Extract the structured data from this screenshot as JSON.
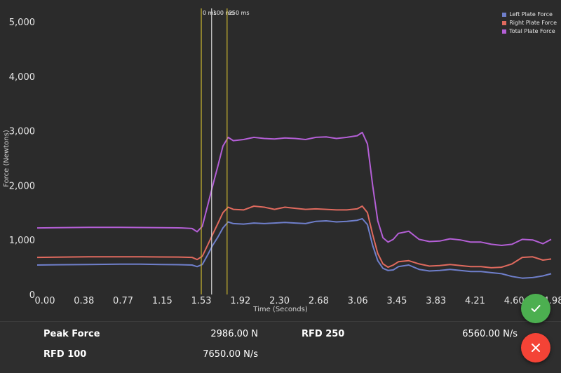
{
  "chart_data": {
    "type": "line",
    "xlabel": "Time (Seconds)",
    "ylabel": "Force (Newtons)",
    "x_ticks": [
      "0.00",
      "0.38",
      "0.77",
      "1.15",
      "1.53",
      "1.92",
      "2.30",
      "2.68",
      "3.06",
      "3.45",
      "3.83",
      "4.21",
      "4.60",
      "4.98"
    ],
    "y_ticks": [
      "0",
      "1,000",
      "2,000",
      "3,000",
      "4,000",
      "5,000"
    ],
    "xlim": [
      0,
      4.98
    ],
    "ylim": [
      0,
      5000
    ],
    "legend_position": "top-right",
    "markers": [
      {
        "label": "0 ms",
        "x": 1.59,
        "color": "#c8b431"
      },
      {
        "label": "100 ms",
        "x": 1.69,
        "color": "#d8d8d8"
      },
      {
        "label": "250 ms",
        "x": 1.84,
        "color": "#c8b431"
      }
    ],
    "x": [
      0.0,
      0.2,
      0.5,
      0.8,
      1.0,
      1.2,
      1.4,
      1.5,
      1.55,
      1.6,
      1.65,
      1.7,
      1.75,
      1.8,
      1.85,
      1.9,
      2.0,
      2.1,
      2.2,
      2.3,
      2.4,
      2.5,
      2.6,
      2.7,
      2.8,
      2.9,
      3.0,
      3.1,
      3.15,
      3.2,
      3.25,
      3.3,
      3.35,
      3.4,
      3.45,
      3.5,
      3.6,
      3.7,
      3.8,
      3.9,
      4.0,
      4.1,
      4.2,
      4.3,
      4.4,
      4.5,
      4.6,
      4.7,
      4.8,
      4.9,
      4.98
    ],
    "series": [
      {
        "name": "Left Plate Force",
        "color": "#6f7fcb",
        "values": [
          540,
          545,
          550,
          555,
          555,
          550,
          545,
          540,
          510,
          550,
          720,
          900,
          1050,
          1220,
          1330,
          1300,
          1290,
          1310,
          1300,
          1310,
          1320,
          1310,
          1300,
          1340,
          1350,
          1330,
          1340,
          1360,
          1390,
          1280,
          900,
          620,
          480,
          440,
          450,
          510,
          540,
          460,
          430,
          440,
          460,
          440,
          420,
          420,
          400,
          380,
          330,
          300,
          310,
          340,
          380
        ]
      },
      {
        "name": "Right Plate Force",
        "color": "#e06a5e",
        "values": [
          680,
          685,
          690,
          690,
          690,
          688,
          685,
          680,
          640,
          700,
          900,
          1100,
          1300,
          1500,
          1600,
          1560,
          1550,
          1620,
          1600,
          1560,
          1600,
          1580,
          1560,
          1570,
          1560,
          1550,
          1550,
          1570,
          1620,
          1500,
          1100,
          750,
          560,
          500,
          540,
          600,
          620,
          560,
          520,
          530,
          550,
          530,
          510,
          510,
          490,
          500,
          560,
          680,
          690,
          630,
          650
        ]
      },
      {
        "name": "Total Plate Force",
        "color": "#b45fd6",
        "values": [
          1220,
          1225,
          1230,
          1230,
          1228,
          1225,
          1220,
          1210,
          1150,
          1250,
          1620,
          1990,
          2350,
          2720,
          2880,
          2820,
          2840,
          2880,
          2860,
          2850,
          2870,
          2860,
          2840,
          2880,
          2890,
          2860,
          2880,
          2910,
          2970,
          2760,
          2000,
          1350,
          1040,
          960,
          1010,
          1120,
          1160,
          1010,
          970,
          980,
          1020,
          1000,
          960,
          960,
          920,
          900,
          920,
          1010,
          1000,
          930,
          1010
        ]
      }
    ]
  },
  "legend": {
    "items": [
      {
        "label": "Left Plate Force",
        "color": "#6f7fcb"
      },
      {
        "label": "Right Plate Force",
        "color": "#e06a5e"
      },
      {
        "label": "Total Plate Force",
        "color": "#b45fd6"
      }
    ]
  },
  "metrics": {
    "peak_force_label": "Peak Force",
    "peak_force_value": "2986.00 N",
    "rfd250_label": "RFD 250",
    "rfd250_value": "6560.00 N/s",
    "rfd100_label": "RFD 100",
    "rfd100_value": "7650.00 N/s"
  },
  "actions": {
    "confirm_icon": "check-icon",
    "cancel_icon": "close-icon",
    "confirm_color": "#4caf50",
    "cancel_color": "#f44336"
  }
}
